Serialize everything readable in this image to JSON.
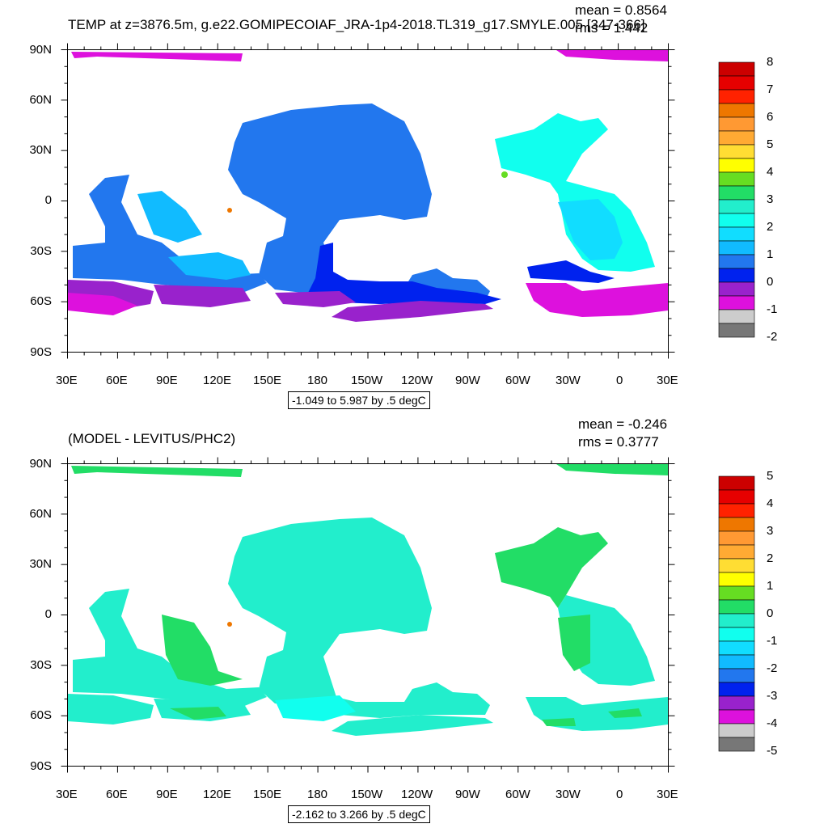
{
  "panels": [
    {
      "title": "TEMP at z=3876.5m, g.e22.GOMIPECOIAF_JRA-1p4-2018.TL319_g17.SMYLE.005 [347-366]",
      "mean": "mean = 0.8564",
      "rms": "rms = 1.442",
      "range": "-1.049 to 5.987 by .5 degC",
      "lat_labels": [
        "90N",
        "60N",
        "30N",
        "0",
        "30S",
        "60S",
        "90S"
      ],
      "lon_labels": [
        "30E",
        "60E",
        "90E",
        "120E",
        "150E",
        "180",
        "150W",
        "120W",
        "90W",
        "60W",
        "30W",
        "0",
        "30E"
      ],
      "colorbar_labels": [
        "8",
        "7",
        "6",
        "5",
        "4",
        "3",
        "2",
        "1",
        "0",
        "-1",
        "-2"
      ],
      "colors": [
        "#cc0000",
        "#e60000",
        "#ff2200",
        "#ee7700",
        "#ff9933",
        "#ffaa33",
        "#ffdd33",
        "#ffff00",
        "#66dd22",
        "#22dd66",
        "#22eecc",
        "#11ffee",
        "#11ddff",
        "#11bbff",
        "#2277ee",
        "#0022ee",
        "#9922cc",
        "#dd11dd",
        "#cccccc",
        "#777777"
      ]
    },
    {
      "title": "(MODEL - LEVITUS/PHC2)",
      "mean": "mean = -0.246",
      "rms": "rms = 0.3777",
      "range": "-2.162 to 3.266 by .5 degC",
      "lat_labels": [
        "90N",
        "60N",
        "30N",
        "0",
        "30S",
        "60S",
        "90S"
      ],
      "lon_labels": [
        "30E",
        "60E",
        "90E",
        "120E",
        "150E",
        "180",
        "150W",
        "120W",
        "90W",
        "60W",
        "30W",
        "0",
        "30E"
      ],
      "colorbar_labels": [
        "5",
        "4",
        "3",
        "2",
        "1",
        "0",
        "-1",
        "-2",
        "-3",
        "-4",
        "-5"
      ],
      "colors": [
        "#cc0000",
        "#e60000",
        "#ff2200",
        "#ee7700",
        "#ff9933",
        "#ffaa33",
        "#ffdd33",
        "#ffff00",
        "#66dd22",
        "#22dd66",
        "#22eecc",
        "#11ffee",
        "#11ddff",
        "#11bbff",
        "#2277ee",
        "#0022ee",
        "#9922cc",
        "#dd11dd",
        "#cccccc",
        "#777777"
      ]
    }
  ]
}
